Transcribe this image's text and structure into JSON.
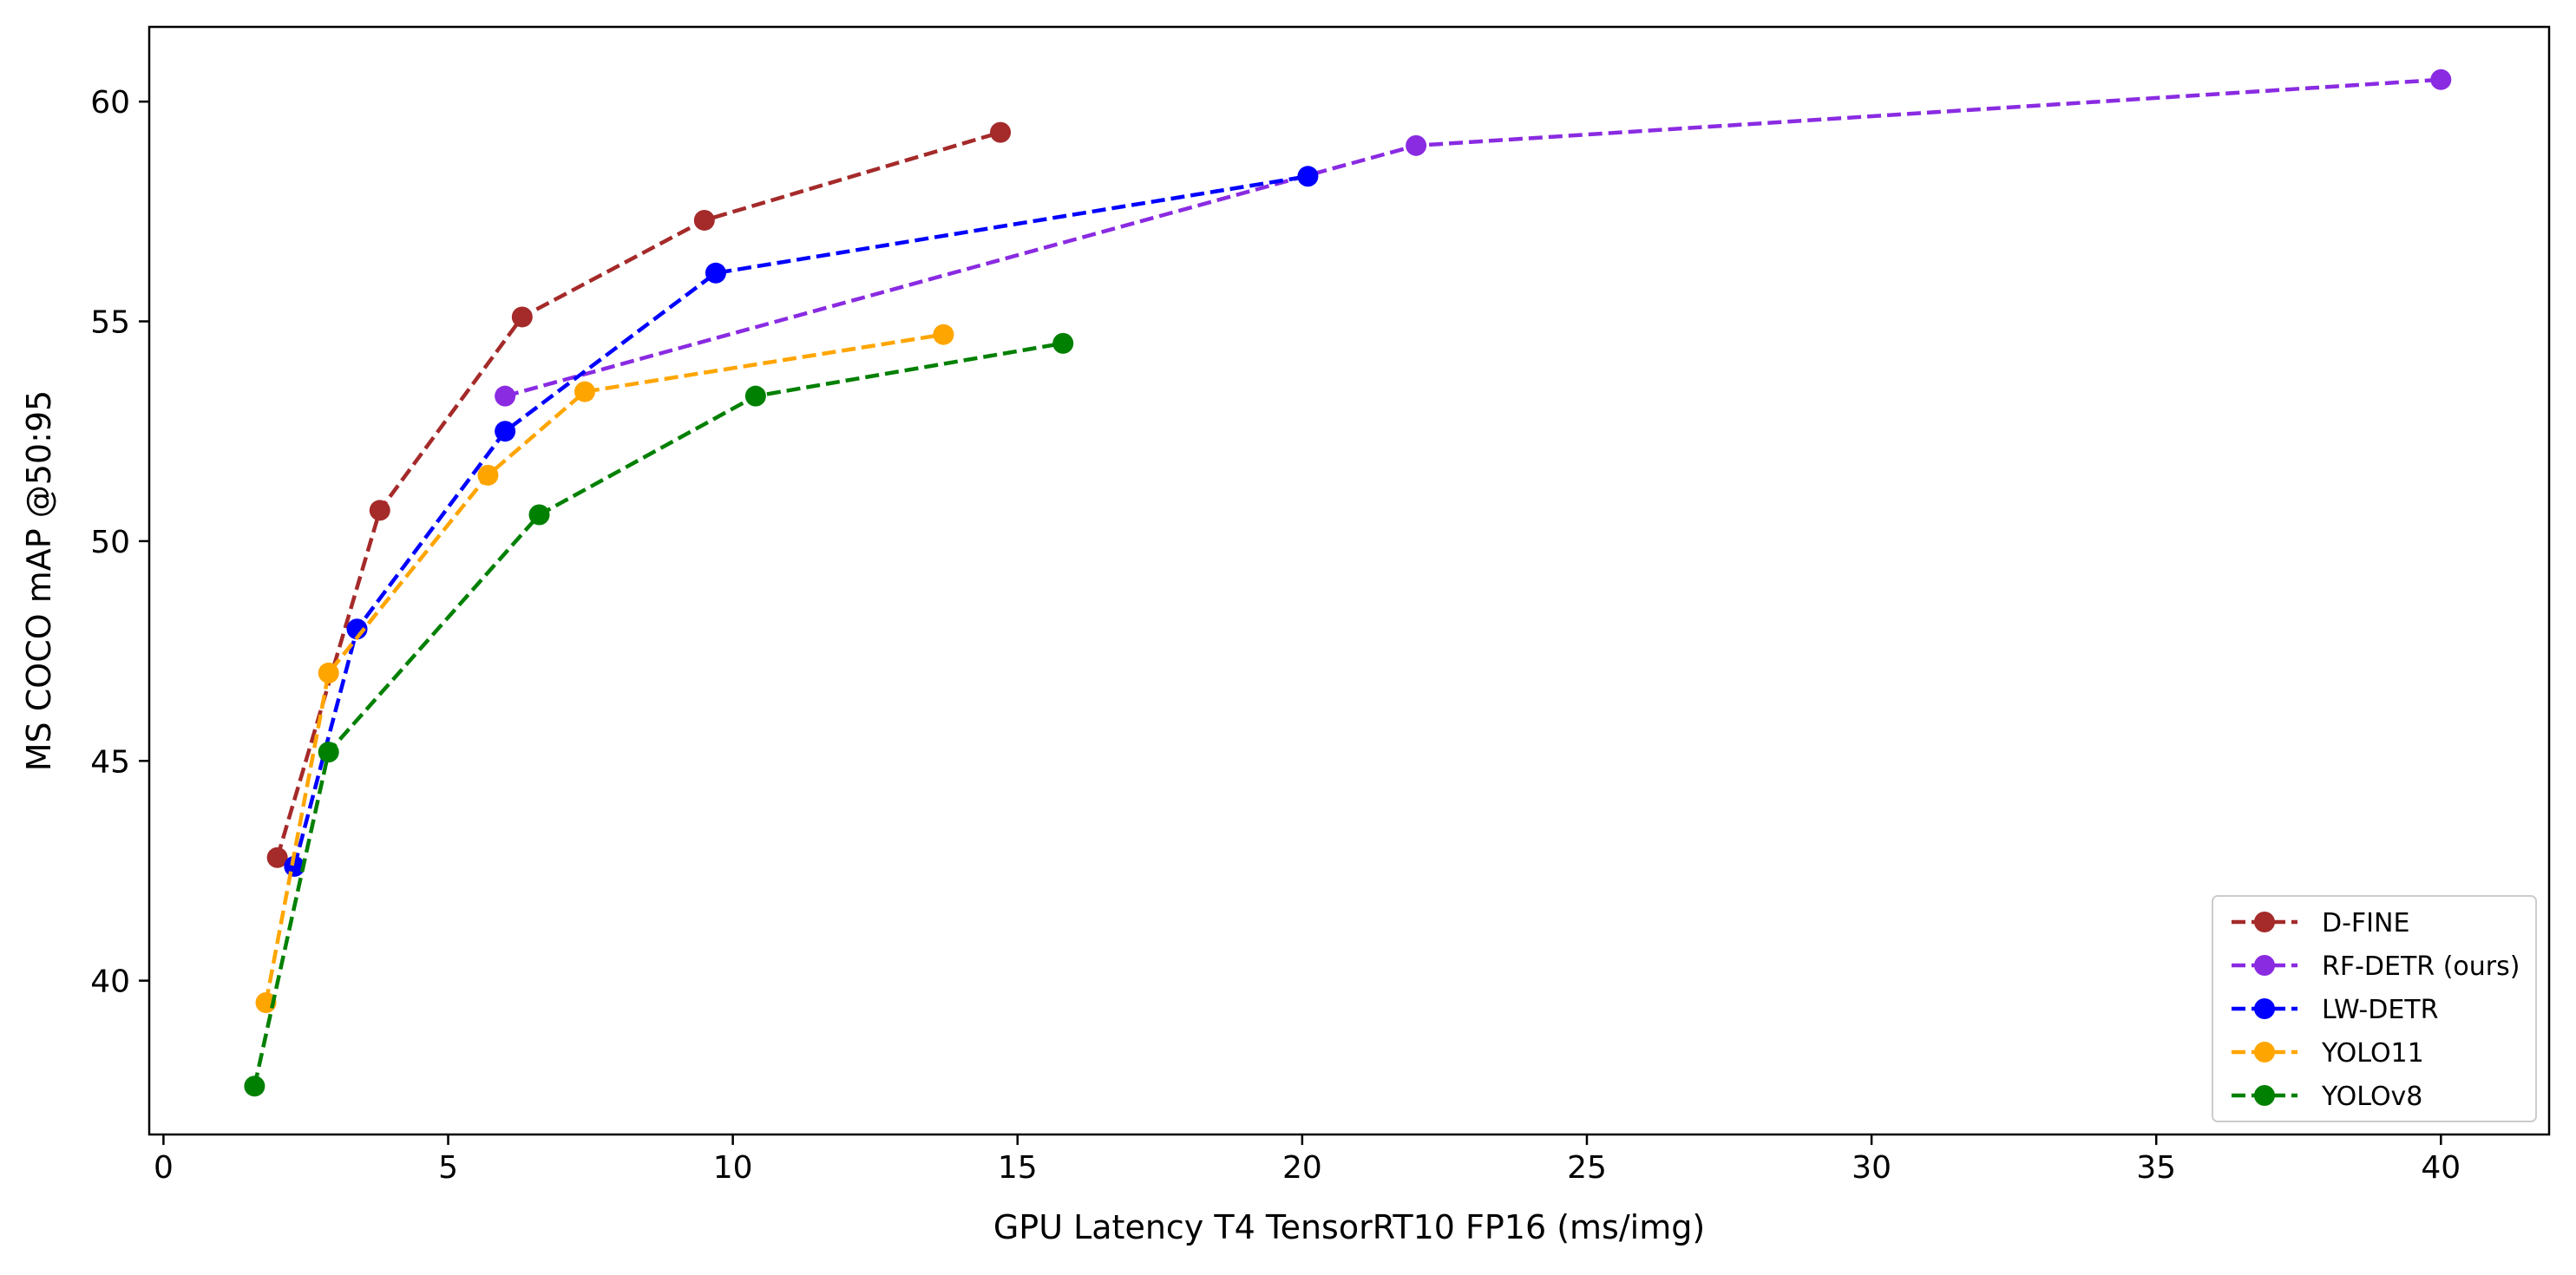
{
  "chart_data": {
    "type": "line",
    "xlabel": "GPU Latency T4 TensorRT10 FP16 (ms/img)",
    "ylabel": "MS COCO mAP @50:95",
    "xlim": [
      -0.25,
      41.9
    ],
    "ylim": [
      36.5,
      61.7
    ],
    "xticks": [
      0,
      5,
      10,
      15,
      20,
      25,
      30,
      35,
      40
    ],
    "yticks": [
      40,
      45,
      50,
      55,
      60
    ],
    "line_style": "dashed",
    "marker": "circle",
    "legend_position": "lower-right",
    "series": [
      {
        "name": "D-FINE",
        "color": "#a52a2a",
        "x": [
          2.0,
          3.8,
          6.3,
          9.5,
          14.7
        ],
        "y": [
          42.8,
          50.7,
          55.1,
          57.3,
          59.3
        ]
      },
      {
        "name": "RF-DETR (ours)",
        "color": "#8a2be2",
        "x": [
          6.0,
          22.0,
          40.0
        ],
        "y": [
          53.3,
          59.0,
          60.5
        ]
      },
      {
        "name": "LW-DETR",
        "color": "#0000ff",
        "x": [
          2.3,
          3.4,
          6.0,
          9.7,
          20.1
        ],
        "y": [
          42.6,
          48.0,
          52.5,
          56.1,
          58.3
        ]
      },
      {
        "name": "YOLO11",
        "color": "#ffa500",
        "x": [
          1.8,
          2.9,
          5.7,
          7.4,
          13.7
        ],
        "y": [
          39.5,
          47.0,
          51.5,
          53.4,
          54.7
        ]
      },
      {
        "name": "YOLOv8",
        "color": "#008000",
        "x": [
          1.6,
          2.9,
          6.6,
          10.4,
          15.8
        ],
        "y": [
          37.6,
          45.2,
          50.6,
          53.3,
          54.5
        ]
      }
    ]
  }
}
